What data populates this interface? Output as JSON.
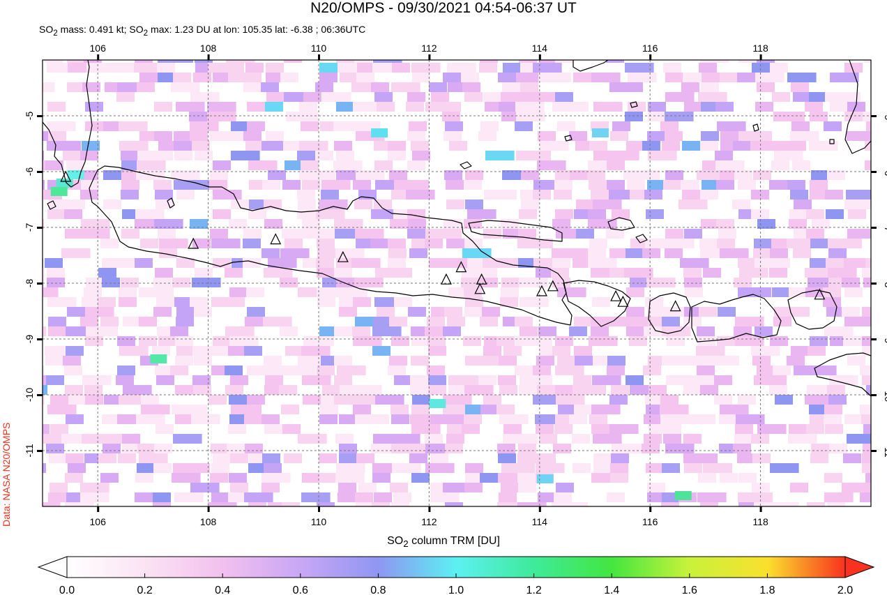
{
  "header": {
    "title": "N20/OMPS - 09/30/2021 04:54-06:37 UT",
    "subtitle_html": "SO<sub>2</sub> mass: 0.491 kt; SO<sub>2</sub> max: 1.23 DU at lon: 105.35 lat: -6.38 ; 06:36UTC"
  },
  "credit": "Data: NASA N20/OMPS",
  "colorbar": {
    "title_html": "SO<sub>2</sub> column TRM [DU]",
    "ticks": [
      "0.0",
      "0.2",
      "0.4",
      "0.6",
      "0.8",
      "1.0",
      "1.2",
      "1.4",
      "1.6",
      "1.8",
      "2.0"
    ],
    "min": 0.0,
    "max": 2.0
  },
  "map": {
    "lon_range": [
      105.0,
      120.0
    ],
    "lat_range": [
      -12.0,
      -4.0
    ],
    "lon_ticks": [
      "106",
      "108",
      "110",
      "112",
      "114",
      "116",
      "118"
    ],
    "lat_ticks": [
      "-5",
      "-6",
      "-7",
      "-8",
      "-9",
      "-10",
      "-11"
    ],
    "volcanoes": [
      [
        105.42,
        -6.1
      ],
      [
        107.73,
        -7.3
      ],
      [
        109.22,
        -7.22
      ],
      [
        110.44,
        -7.54
      ],
      [
        112.31,
        -7.94
      ],
      [
        112.58,
        -7.72
      ],
      [
        112.95,
        -7.94
      ],
      [
        112.92,
        -8.11
      ],
      [
        114.04,
        -8.15
      ],
      [
        114.24,
        -8.06
      ],
      [
        115.38,
        -8.24
      ],
      [
        115.51,
        -8.34
      ],
      [
        116.46,
        -8.42
      ],
      [
        119.07,
        -8.21
      ]
    ]
  }
}
